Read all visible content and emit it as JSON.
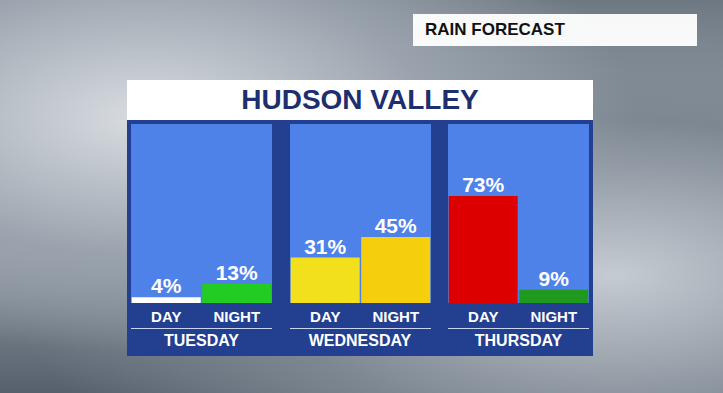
{
  "header": "RAIN FORECAST",
  "title": "HUDSON VALLEY",
  "chart_data": [
    {
      "type": "bar",
      "title": "TUESDAY",
      "categories": [
        "DAY",
        "NIGHT"
      ],
      "values": [
        4,
        13
      ],
      "value_labels": [
        "4%",
        "13%"
      ],
      "colors": [
        "#ffffff",
        "#22cc22"
      ],
      "ylim": [
        0,
        122
      ],
      "data_labels": true,
      "tick_labels": "x"
    },
    {
      "type": "bar",
      "title": "WEDNESDAY",
      "categories": [
        "DAY",
        "NIGHT"
      ],
      "values": [
        31,
        45
      ],
      "value_labels": [
        "31%",
        "45%"
      ],
      "colors": [
        "#f3e01c",
        "#f5cf0c"
      ],
      "ylim": [
        0,
        122
      ],
      "data_labels": true,
      "tick_labels": "x"
    },
    {
      "type": "bar",
      "title": "THURSDAY",
      "categories": [
        "DAY",
        "NIGHT"
      ],
      "values": [
        73,
        9
      ],
      "value_labels": [
        "73%",
        "9%"
      ],
      "colors": [
        "#dd0000",
        "#1f9a1f"
      ],
      "ylim": [
        0,
        122
      ],
      "data_labels": true,
      "tick_labels": "x"
    }
  ]
}
